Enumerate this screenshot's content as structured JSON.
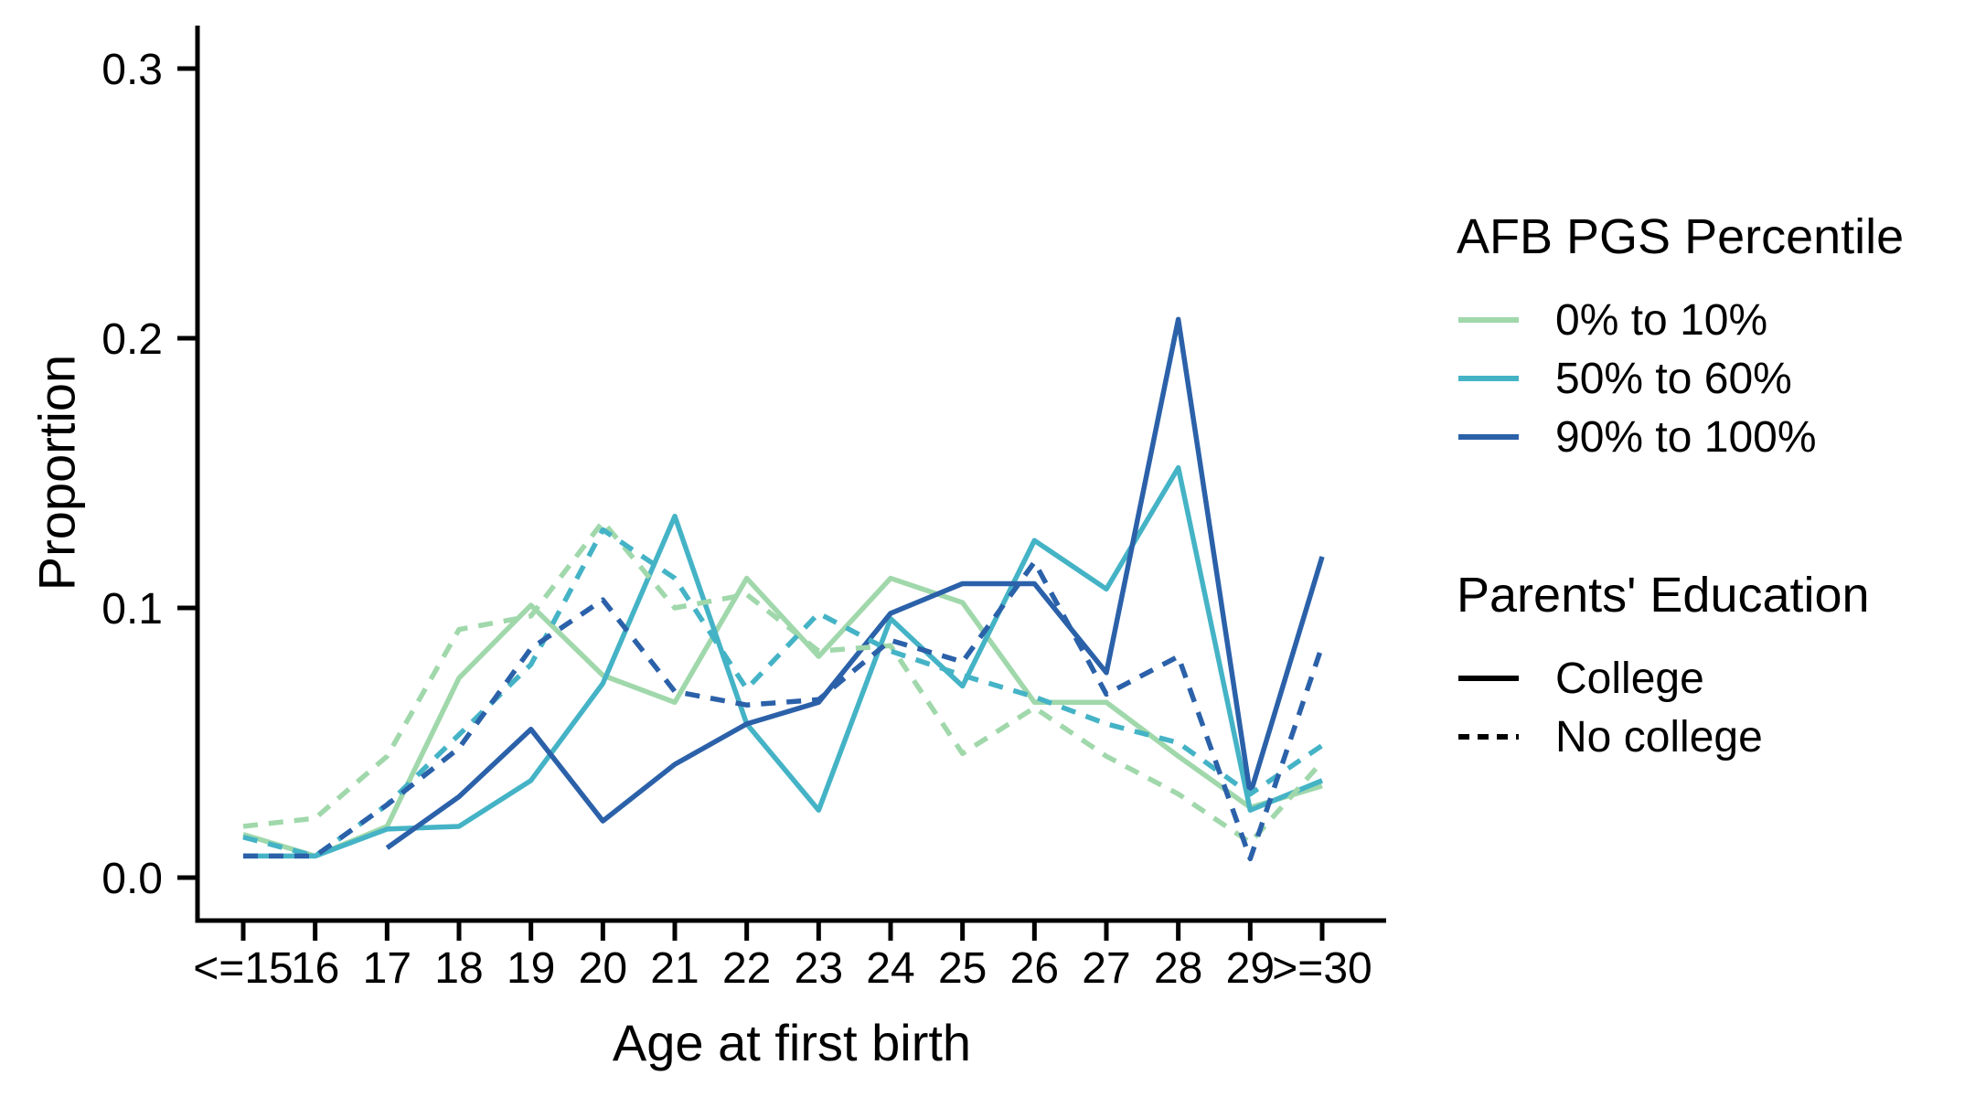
{
  "figure": {
    "background": "#ffffff",
    "axis_color": "#000000",
    "text_color": "#000000"
  },
  "chart_data": {
    "type": "line",
    "title": "",
    "xlabel": "Age at first birth",
    "ylabel": "Proportion",
    "categories": [
      "<=15",
      "16",
      "17",
      "18",
      "19",
      "20",
      "21",
      "22",
      "23",
      "24",
      "25",
      "26",
      "27",
      "28",
      "29",
      ">=30"
    ],
    "y_ticks": [
      "0.0",
      "0.1",
      "0.2",
      "0.3"
    ],
    "y_tick_values": [
      0.0,
      0.1,
      0.2,
      0.3
    ],
    "ylim": [
      0,
      0.31
    ],
    "grid": false,
    "legend": {
      "position": "right",
      "color_title": "AFB PGS Percentile",
      "color_entries": [
        {
          "label": "0% to 10%",
          "color": "#a0d8ab"
        },
        {
          "label": "50% to 60%",
          "color": "#45b3c6"
        },
        {
          "label": "90% to 100%",
          "color": "#2b61a9"
        }
      ],
      "linetype_title": "Parents' Education",
      "linetype_entries": [
        {
          "label": "College",
          "dash": "solid"
        },
        {
          "label": "No college",
          "dash": "dashed"
        }
      ]
    },
    "series": [
      {
        "name": "0% to 10% / College",
        "color": "#a0d8ab",
        "dash": "solid",
        "values": [
          0.016,
          0.008,
          0.019,
          0.074,
          0.101,
          0.075,
          0.065,
          0.111,
          0.082,
          0.111,
          0.102,
          0.065,
          0.065,
          0.045,
          0.026,
          0.034
        ]
      },
      {
        "name": "50% to 60% / College",
        "color": "#45b3c6",
        "dash": "solid",
        "values": [
          0.008,
          0.008,
          0.018,
          0.019,
          0.036,
          0.072,
          0.134,
          0.057,
          0.025,
          0.096,
          0.071,
          0.125,
          0.107,
          0.152,
          0.025,
          0.036
        ]
      },
      {
        "name": "90% to 100% / College",
        "color": "#2b61a9",
        "dash": "solid",
        "values": [
          null,
          null,
          0.011,
          0.03,
          0.055,
          0.021,
          0.042,
          0.057,
          0.065,
          0.098,
          0.109,
          0.109,
          0.076,
          0.207,
          0.031,
          0.119
        ]
      },
      {
        "name": "0% to 10% / No college",
        "color": "#a0d8ab",
        "dash": "dashed",
        "values": [
          0.019,
          0.022,
          0.045,
          0.092,
          0.097,
          0.132,
          0.1,
          0.105,
          0.084,
          0.086,
          0.046,
          0.063,
          0.045,
          0.031,
          0.013,
          0.043
        ]
      },
      {
        "name": "50% to 60% / No college",
        "color": "#45b3c6",
        "dash": "dashed",
        "values": [
          0.015,
          0.008,
          0.027,
          0.053,
          0.079,
          0.129,
          0.111,
          0.07,
          0.098,
          0.084,
          0.075,
          0.067,
          0.057,
          0.05,
          0.031,
          0.049
        ]
      },
      {
        "name": "90% to 100% / No college",
        "color": "#2b61a9",
        "dash": "dashed",
        "values": [
          0.008,
          0.008,
          0.027,
          0.048,
          0.085,
          0.103,
          0.069,
          0.064,
          0.066,
          0.088,
          0.08,
          0.117,
          0.068,
          0.082,
          0.007,
          0.086
        ]
      }
    ]
  }
}
